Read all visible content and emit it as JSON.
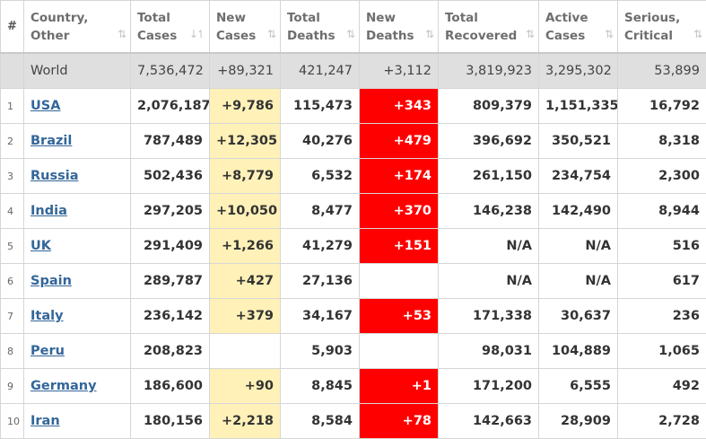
{
  "headers": [
    {
      "label": "#",
      "sort": ""
    },
    {
      "label": "Country, Other",
      "sort": "⇅"
    },
    {
      "label": "Total Cases",
      "sort": "↓↿"
    },
    {
      "label": "New Cases",
      "sort": "⇅"
    },
    {
      "label": "Total Deaths",
      "sort": "⇅"
    },
    {
      "label": "New Deaths",
      "sort": "⇅"
    },
    {
      "label": "Total Recovered",
      "sort": "⇅"
    },
    {
      "label": "Active Cases",
      "sort": "⇅"
    },
    {
      "label": "Serious, Critical",
      "sort": "⇅"
    }
  ],
  "world": {
    "name": "World",
    "total_cases": "7,536,472",
    "new_cases": "+89,321",
    "total_deaths": "421,247",
    "new_deaths": "+3,112",
    "total_recovered": "3,819,923",
    "active_cases": "3,295,302",
    "serious": "53,899"
  },
  "rows": [
    {
      "idx": "1",
      "name": "USA",
      "total_cases": "2,076,187",
      "new_cases": "+9,786",
      "total_deaths": "115,473",
      "new_deaths": "+343",
      "total_recovered": "809,379",
      "active_cases": "1,151,335",
      "serious": "16,792"
    },
    {
      "idx": "2",
      "name": "Brazil",
      "total_cases": "787,489",
      "new_cases": "+12,305",
      "total_deaths": "40,276",
      "new_deaths": "+479",
      "total_recovered": "396,692",
      "active_cases": "350,521",
      "serious": "8,318"
    },
    {
      "idx": "3",
      "name": "Russia",
      "total_cases": "502,436",
      "new_cases": "+8,779",
      "total_deaths": "6,532",
      "new_deaths": "+174",
      "total_recovered": "261,150",
      "active_cases": "234,754",
      "serious": "2,300"
    },
    {
      "idx": "4",
      "name": "India",
      "total_cases": "297,205",
      "new_cases": "+10,050",
      "total_deaths": "8,477",
      "new_deaths": "+370",
      "total_recovered": "146,238",
      "active_cases": "142,490",
      "serious": "8,944"
    },
    {
      "idx": "5",
      "name": "UK",
      "total_cases": "291,409",
      "new_cases": "+1,266",
      "total_deaths": "41,279",
      "new_deaths": "+151",
      "total_recovered": "N/A",
      "active_cases": "N/A",
      "serious": "516"
    },
    {
      "idx": "6",
      "name": "Spain",
      "total_cases": "289,787",
      "new_cases": "+427",
      "total_deaths": "27,136",
      "new_deaths": "",
      "total_recovered": "N/A",
      "active_cases": "N/A",
      "serious": "617"
    },
    {
      "idx": "7",
      "name": "Italy",
      "total_cases": "236,142",
      "new_cases": "+379",
      "total_deaths": "34,167",
      "new_deaths": "+53",
      "total_recovered": "171,338",
      "active_cases": "30,637",
      "serious": "236"
    },
    {
      "idx": "8",
      "name": "Peru",
      "total_cases": "208,823",
      "new_cases": "",
      "total_deaths": "5,903",
      "new_deaths": "",
      "total_recovered": "98,031",
      "active_cases": "104,889",
      "serious": "1,065"
    },
    {
      "idx": "9",
      "name": "Germany",
      "total_cases": "186,600",
      "new_cases": "+90",
      "total_deaths": "8,845",
      "new_deaths": "+1",
      "total_recovered": "171,200",
      "active_cases": "6,555",
      "serious": "492"
    },
    {
      "idx": "10",
      "name": "Iran",
      "total_cases": "180,156",
      "new_cases": "+2,218",
      "total_deaths": "8,584",
      "new_deaths": "+78",
      "total_recovered": "142,663",
      "active_cases": "28,909",
      "serious": "2,728"
    }
  ],
  "colors": {
    "new_cases_bg": "#fff1b8",
    "new_deaths_bg": "#ff0000",
    "world_bg": "#dfdfdf",
    "link": "#336699"
  }
}
